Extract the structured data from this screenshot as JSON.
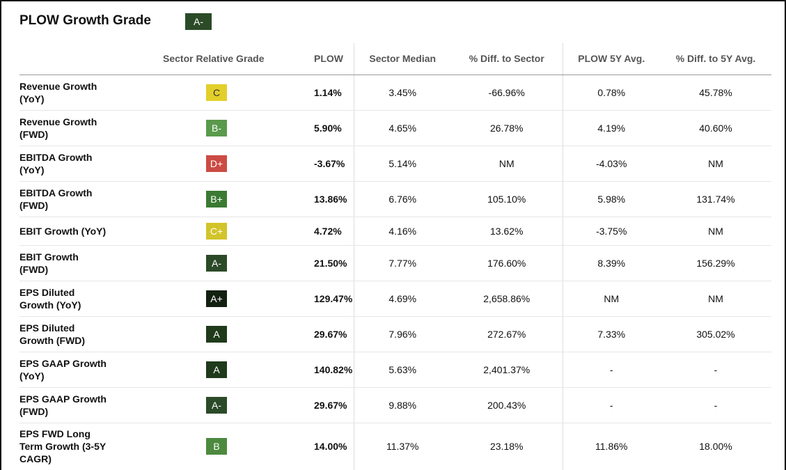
{
  "title": "PLOW Growth Grade",
  "overall_grade": {
    "label": "A-",
    "color": "#2b4a27"
  },
  "columns": [
    "",
    "Sector Relative Grade",
    "PLOW",
    "Sector Median",
    "% Diff. to Sector",
    "PLOW 5Y Avg.",
    "% Diff. to 5Y Avg."
  ],
  "rows": [
    {
      "metric": [
        "Revenue Growth",
        "(YoY)"
      ],
      "grade": "C",
      "grade_color": "#e2cf2a",
      "grade_text_color": "#333333",
      "plow": "1.14%",
      "sector_median": "3.45%",
      "diff_sector": "-66.96%",
      "avg_5y": "0.78%",
      "diff_5y": "45.78%"
    },
    {
      "metric": [
        "Revenue Growth",
        "(FWD)"
      ],
      "grade": "B-",
      "grade_color": "#5a9a4c",
      "grade_text_color": "#ffffff",
      "plow": "5.90%",
      "sector_median": "4.65%",
      "diff_sector": "26.78%",
      "avg_5y": "4.19%",
      "diff_5y": "40.60%"
    },
    {
      "metric": [
        "EBITDA Growth",
        "(YoY)"
      ],
      "grade": "D+",
      "grade_color": "#cc4b44",
      "grade_text_color": "#ffffff",
      "plow": "-3.67%",
      "sector_median": "5.14%",
      "diff_sector": "NM",
      "avg_5y": "-4.03%",
      "diff_5y": "NM"
    },
    {
      "metric": [
        "EBITDA Growth",
        "(FWD)"
      ],
      "grade": "B+",
      "grade_color": "#3b7a33",
      "grade_text_color": "#ffffff",
      "plow": "13.86%",
      "sector_median": "6.76%",
      "diff_sector": "105.10%",
      "avg_5y": "5.98%",
      "diff_5y": "131.74%"
    },
    {
      "metric": [
        "EBIT Growth (YoY)"
      ],
      "grade": "C+",
      "grade_color": "#d2c42a",
      "grade_text_color": "#ffffff",
      "plow": "4.72%",
      "sector_median": "4.16%",
      "diff_sector": "13.62%",
      "avg_5y": "-3.75%",
      "diff_5y": "NM"
    },
    {
      "metric": [
        "EBIT Growth",
        "(FWD)"
      ],
      "grade": "A-",
      "grade_color": "#2b4a27",
      "grade_text_color": "#ffffff",
      "plow": "21.50%",
      "sector_median": "7.77%",
      "diff_sector": "176.60%",
      "avg_5y": "8.39%",
      "diff_5y": "156.29%"
    },
    {
      "metric": [
        "EPS Diluted",
        "Growth (YoY)"
      ],
      "grade": "A+",
      "grade_color": "#12200f",
      "grade_text_color": "#ffffff",
      "plow": "129.47%",
      "sector_median": "4.69%",
      "diff_sector": "2,658.86%",
      "avg_5y": "NM",
      "diff_5y": "NM"
    },
    {
      "metric": [
        "EPS Diluted",
        "Growth (FWD)"
      ],
      "grade": "A",
      "grade_color": "#1f3a1b",
      "grade_text_color": "#ffffff",
      "plow": "29.67%",
      "sector_median": "7.96%",
      "diff_sector": "272.67%",
      "avg_5y": "7.33%",
      "diff_5y": "305.02%"
    },
    {
      "metric": [
        "EPS GAAP Growth",
        "(YoY)"
      ],
      "grade": "A",
      "grade_color": "#1f3a1b",
      "grade_text_color": "#ffffff",
      "plow": "140.82%",
      "sector_median": "5.63%",
      "diff_sector": "2,401.37%",
      "avg_5y": "-",
      "diff_5y": "-"
    },
    {
      "metric": [
        "EPS GAAP Growth",
        "(FWD)"
      ],
      "grade": "A-",
      "grade_color": "#2b4a27",
      "grade_text_color": "#ffffff",
      "plow": "29.67%",
      "sector_median": "9.88%",
      "diff_sector": "200.43%",
      "avg_5y": "-",
      "diff_5y": "-"
    },
    {
      "metric": [
        "EPS FWD Long",
        "Term Growth (3-5Y",
        "CAGR)"
      ],
      "grade": "B",
      "grade_color": "#4c8a3f",
      "grade_text_color": "#ffffff",
      "plow": "14.00%",
      "sector_median": "11.37%",
      "diff_sector": "23.18%",
      "avg_5y": "11.86%",
      "diff_5y": "18.00%"
    }
  ]
}
